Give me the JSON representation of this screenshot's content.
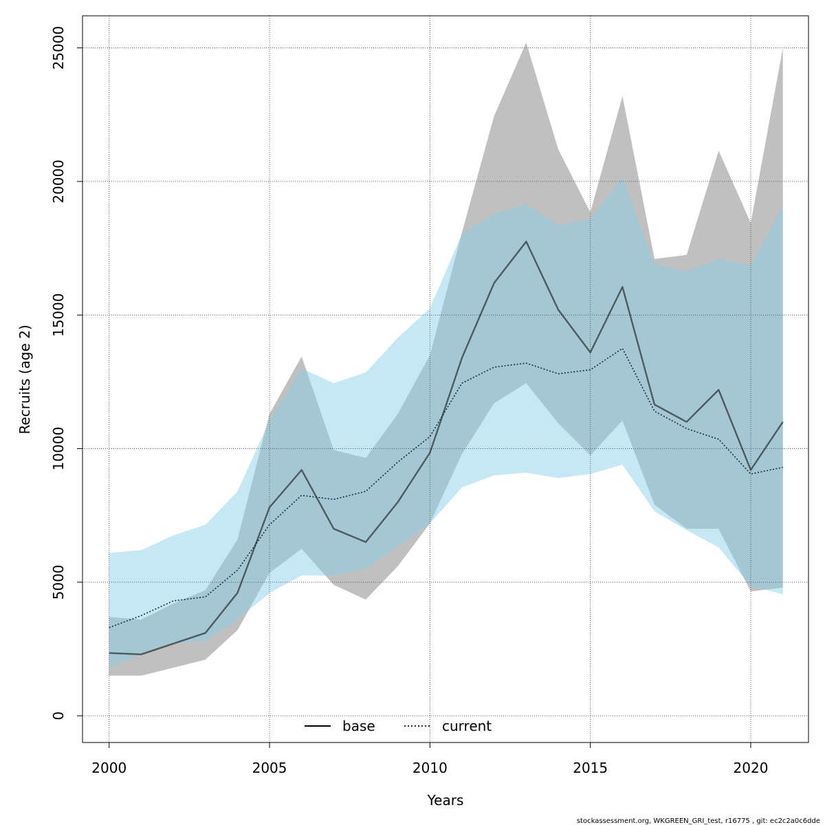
{
  "chart_data": {
    "type": "line",
    "xlabel": "Years",
    "ylabel": "Recruits (age 2)",
    "xlim": [
      1999.17,
      2021.8
    ],
    "ylim": [
      -1000,
      26200
    ],
    "x_ticks": [
      2000,
      2005,
      2010,
      2015,
      2020
    ],
    "x_tick_labels": [
      "2000",
      "2005",
      "2010",
      "2015",
      "2020"
    ],
    "y_ticks": [
      0,
      5000,
      10000,
      15000,
      20000,
      25000
    ],
    "y_tick_labels": [
      "0",
      "5000",
      "10000",
      "15000",
      "20000",
      "25000"
    ],
    "grid": true,
    "legend_position": "bottom",
    "x": [
      2000,
      2001,
      2002,
      2003,
      2004,
      2005,
      2006,
      2007,
      2008,
      2009,
      2010,
      2011,
      2012,
      2013,
      2014,
      2015,
      2016,
      2017,
      2018,
      2019,
      2020,
      2021
    ],
    "series": [
      {
        "name": "base",
        "line_style": "solid",
        "color": "#000000",
        "band_color": "#bebebe",
        "values": [
          2350,
          2300,
          2700,
          3100,
          4600,
          7800,
          9200,
          7000,
          6500,
          8000,
          9850,
          13400,
          16200,
          17750,
          15200,
          13600,
          16050,
          11650,
          11000,
          12200,
          9200,
          11000
        ],
        "lower": [
          1500,
          1500,
          1800,
          2100,
          3200,
          5350,
          6250,
          4900,
          4350,
          5600,
          7200,
          9800,
          11700,
          12450,
          10950,
          9750,
          11050,
          7900,
          7000,
          7000,
          4650,
          4800
        ],
        "upper": [
          3700,
          3600,
          4200,
          4700,
          6600,
          11300,
          13450,
          9950,
          9650,
          11300,
          13500,
          18100,
          22450,
          25200,
          21200,
          18850,
          23200,
          17100,
          17250,
          21150,
          18450,
          25000
        ]
      },
      {
        "name": "current",
        "line_style": "dotted",
        "color": "#0a2a4a",
        "band_color": "#87ceeb",
        "values": [
          3300,
          3750,
          4300,
          4450,
          5450,
          7150,
          8250,
          8100,
          8400,
          9500,
          10450,
          12450,
          13050,
          13200,
          12800,
          12950,
          13750,
          11400,
          10750,
          10350,
          9050,
          9300
        ],
        "lower": [
          1800,
          2300,
          2700,
          2800,
          3600,
          4600,
          5250,
          5250,
          5500,
          6350,
          7200,
          8550,
          9000,
          9100,
          8900,
          9050,
          9400,
          7650,
          6950,
          6300,
          4850,
          4550
        ],
        "upper": [
          6100,
          6200,
          6750,
          7150,
          8400,
          11050,
          13000,
          12450,
          12850,
          14150,
          15250,
          18050,
          18800,
          19150,
          18350,
          18600,
          20150,
          16900,
          16650,
          17100,
          16850,
          19100
        ]
      }
    ]
  },
  "legend": {
    "items": [
      {
        "label": "base",
        "line_style": "solid",
        "color": "#000000"
      },
      {
        "label": "current",
        "line_style": "dotted",
        "color": "#0a2a4a"
      }
    ]
  },
  "footer": {
    "text": "stockassessment.org, WKGREEN_GRI_test, r16775 , git: ec2c2a0c6dde"
  }
}
